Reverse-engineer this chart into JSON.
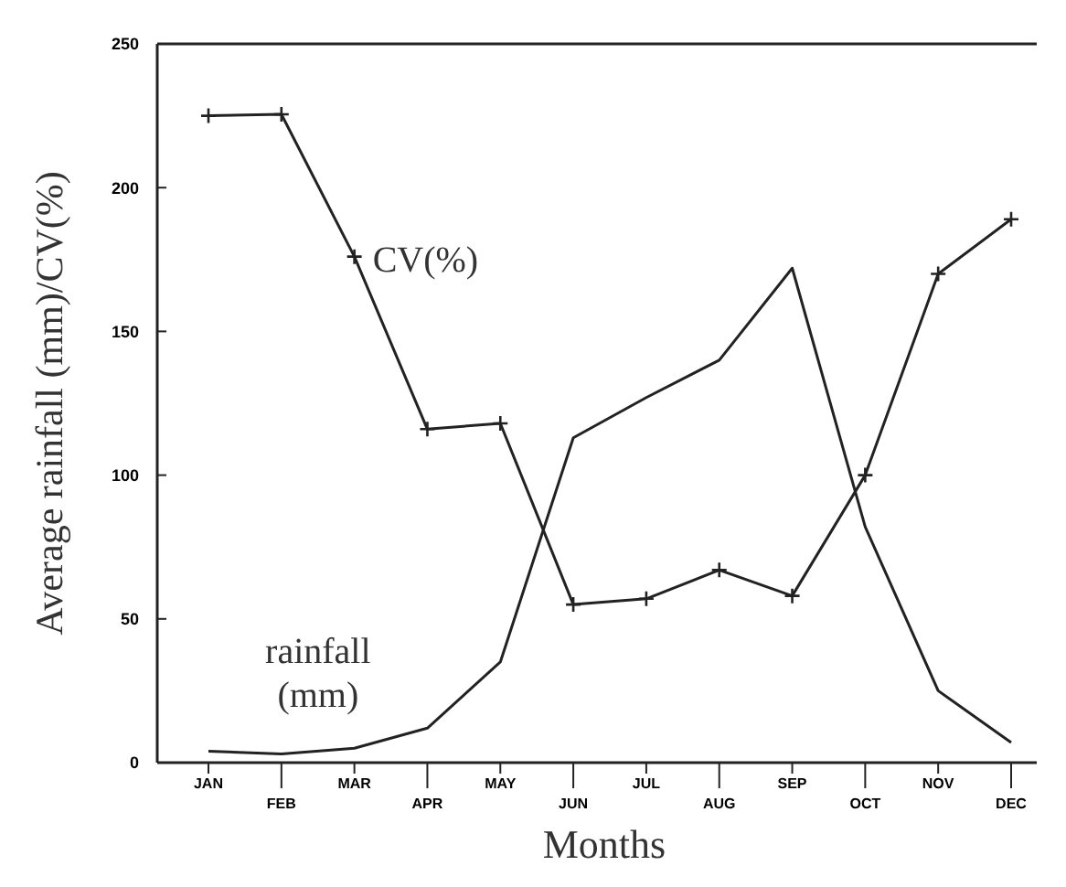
{
  "chart_data": {
    "type": "line",
    "xlabel": "Months",
    "ylabel": "Average rainfall (mm)/CV(%)",
    "categories": [
      "JAN",
      "FEB",
      "MAR",
      "APR",
      "MAY",
      "JUN",
      "JUL",
      "AUG",
      "SEP",
      "OCT",
      "NOV",
      "DEC"
    ],
    "series": [
      {
        "name": "CV(%)",
        "color": "#222222",
        "marker": "cross",
        "values": [
          225,
          225.5,
          176,
          116,
          118,
          55,
          57,
          67,
          58,
          100,
          170,
          189
        ]
      },
      {
        "name": "rainfall (mm)",
        "color": "#222222",
        "marker": "none",
        "values": [
          4,
          3,
          5,
          12,
          35,
          113,
          127,
          140,
          172,
          82,
          25,
          7
        ]
      }
    ],
    "ylim": [
      0,
      250
    ],
    "yticks": [
      0,
      50,
      100,
      150,
      200,
      250
    ],
    "grid": false,
    "line_style": "solid"
  }
}
